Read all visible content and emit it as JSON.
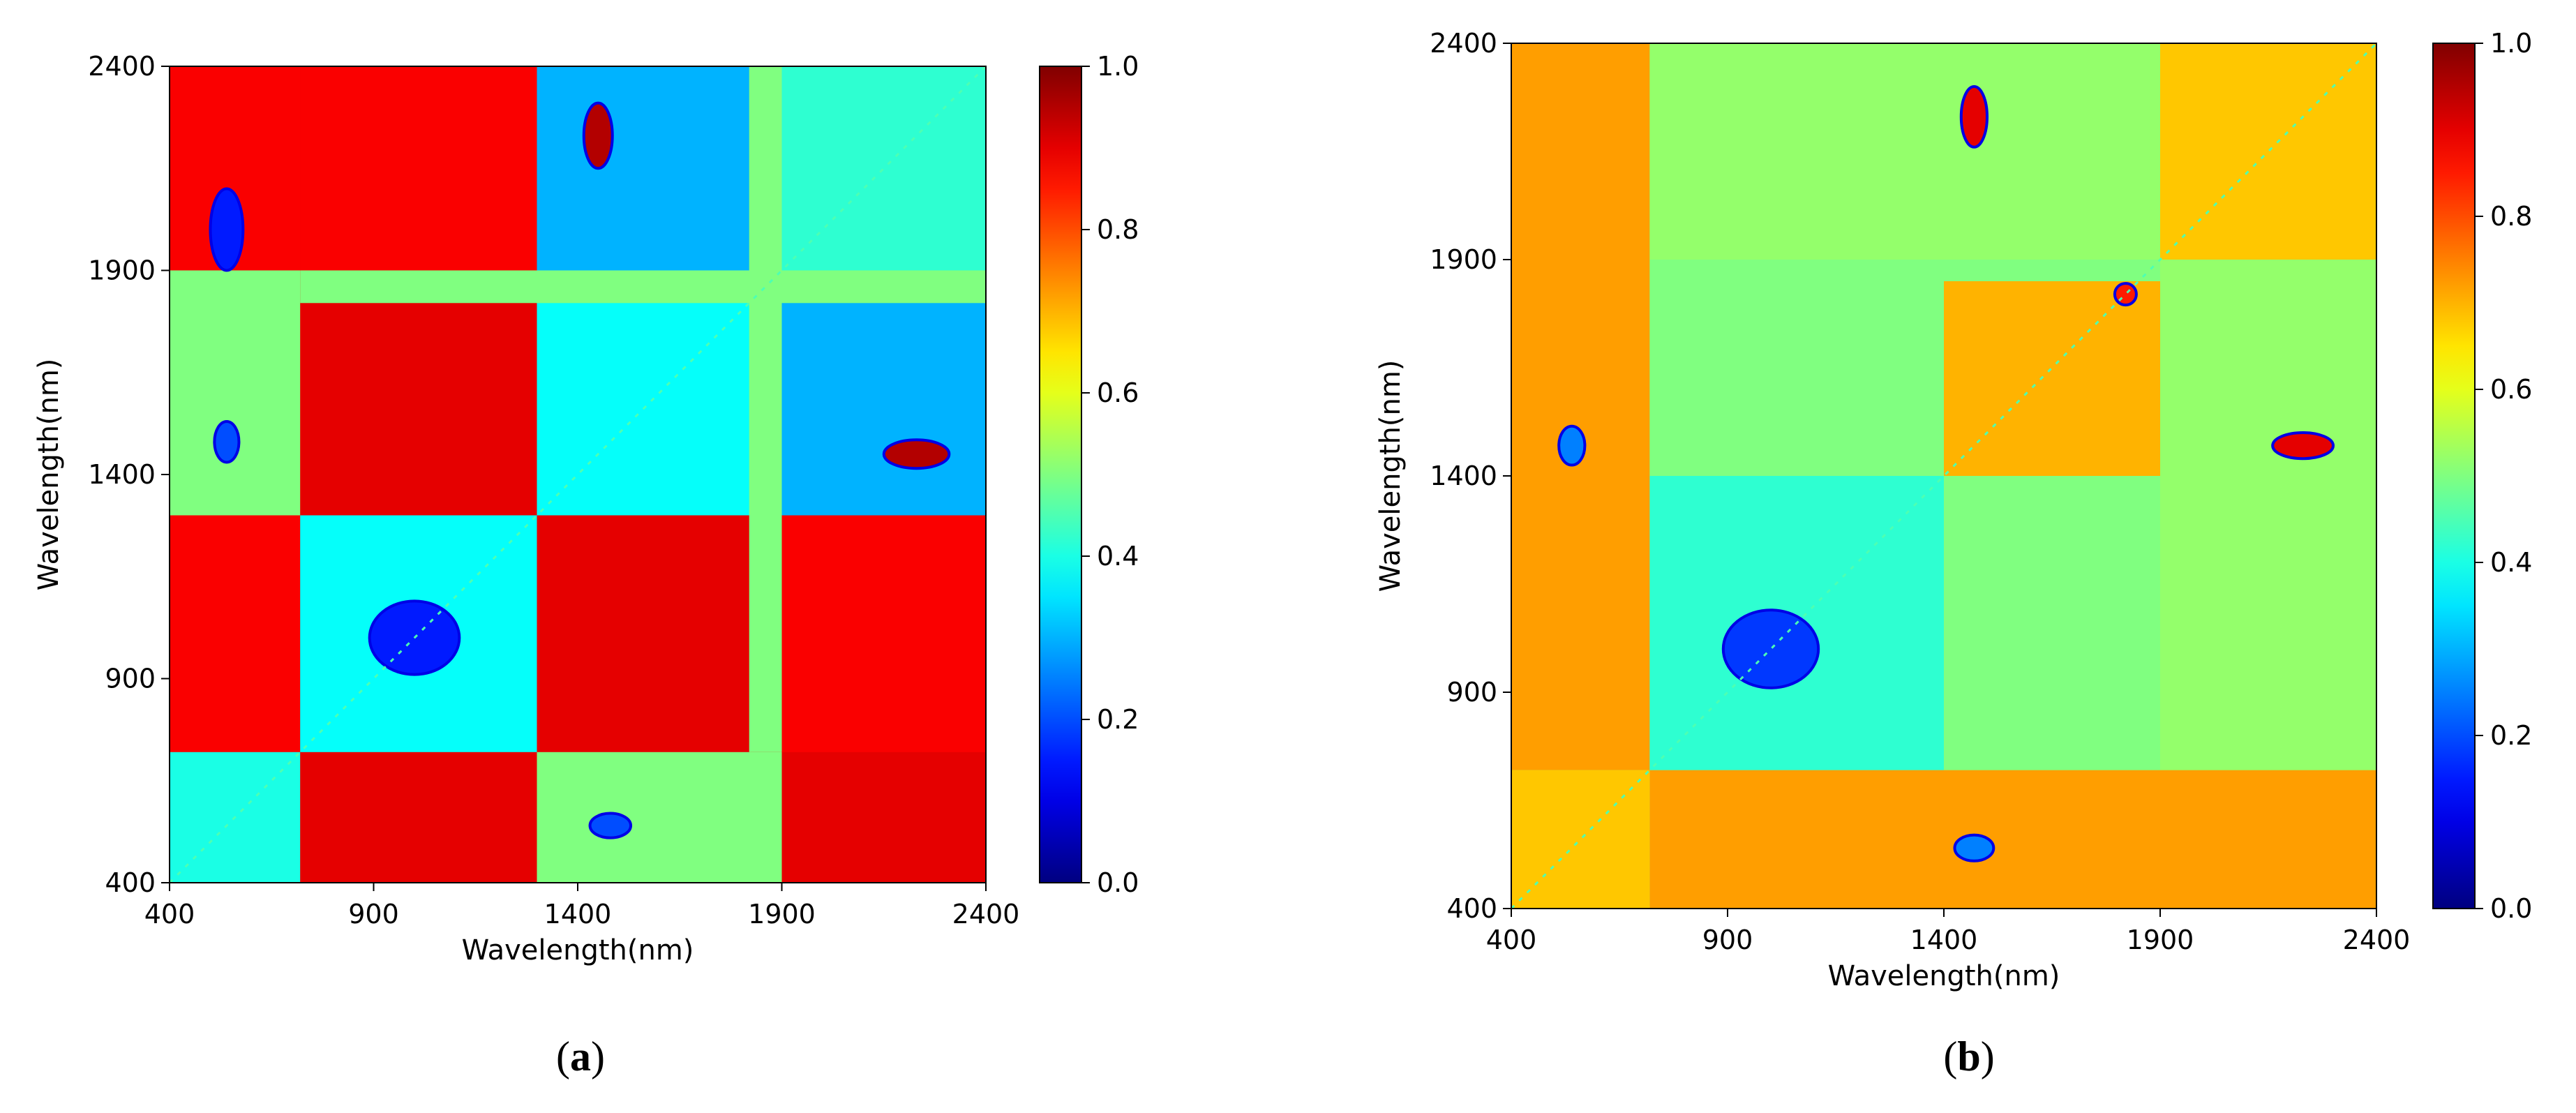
{
  "chart_data": [
    {
      "type": "heatmap",
      "panel_label": "a",
      "xlabel": "Wavelength(nm)",
      "ylabel": "Wavelength(nm)",
      "xlim": [
        400,
        2400
      ],
      "ylim": [
        400,
        2400
      ],
      "x_ticks": [
        "400",
        "900",
        "1400",
        "1900",
        "2400"
      ],
      "y_ticks": [
        "400",
        "900",
        "1400",
        "1900",
        "2400"
      ],
      "colorbar": {
        "range": [
          0.0,
          1.0
        ],
        "ticks": [
          "0.0",
          "0.2",
          "0.4",
          "0.6",
          "0.8",
          "1.0"
        ],
        "colormap": "jet"
      },
      "background_value": 0.9,
      "regions": [
        {
          "x": [
            400,
            720
          ],
          "y": [
            720,
            2400
          ],
          "v": 0.88
        },
        {
          "x": [
            720,
            2400
          ],
          "y": [
            400,
            720
          ],
          "v": 0.9
        },
        {
          "x": [
            400,
            720
          ],
          "y": [
            400,
            720
          ],
          "v": 0.4
        },
        {
          "x": [
            720,
            1300
          ],
          "y": [
            720,
            1300
          ],
          "v": 0.38
        },
        {
          "x": [
            1300,
            1900
          ],
          "y": [
            1300,
            1900
          ],
          "v": 0.38
        },
        {
          "x": [
            1900,
            2400
          ],
          "y": [
            1900,
            2400
          ],
          "v": 0.42
        },
        {
          "x": [
            1300,
            1900
          ],
          "y": [
            720,
            1300
          ],
          "v": 0.9
        },
        {
          "x": [
            720,
            1300
          ],
          "y": [
            1300,
            1900
          ],
          "v": 0.9
        },
        {
          "x": [
            1900,
            2400
          ],
          "y": [
            720,
            1900
          ],
          "v": 0.88
        },
        {
          "x": [
            720,
            1900
          ],
          "y": [
            1900,
            2400
          ],
          "v": 0.88
        },
        {
          "x": [
            1900,
            2400
          ],
          "y": [
            1300,
            1900
          ],
          "v": 0.3
        },
        {
          "x": [
            1300,
            1900
          ],
          "y": [
            1900,
            2400
          ],
          "v": 0.3
        },
        {
          "x": [
            400,
            720
          ],
          "y": [
            1300,
            1900
          ],
          "v": 0.5
        },
        {
          "x": [
            1300,
            1900
          ],
          "y": [
            400,
            720
          ],
          "v": 0.5
        },
        {
          "x": [
            1820,
            1900
          ],
          "y": [
            720,
            2400
          ],
          "v": 0.5
        },
        {
          "x": [
            720,
            2400
          ],
          "y": [
            1820,
            1900
          ],
          "v": 0.5
        }
      ],
      "spots": [
        {
          "x": 2230,
          "y": 1450,
          "rx": 80,
          "ry": 35,
          "v": 0.95
        },
        {
          "x": 1450,
          "y": 2230,
          "rx": 35,
          "ry": 80,
          "v": 0.95
        },
        {
          "x": 540,
          "y": 1480,
          "rx": 30,
          "ry": 50,
          "v": 0.2
        },
        {
          "x": 1480,
          "y": 540,
          "rx": 50,
          "ry": 30,
          "v": 0.2
        },
        {
          "x": 1000,
          "y": 1000,
          "rx": 110,
          "ry": 90,
          "v": 0.15
        },
        {
          "x": 540,
          "y": 2000,
          "rx": 40,
          "ry": 100,
          "v": 0.15
        }
      ]
    },
    {
      "type": "heatmap",
      "panel_label": "b",
      "xlabel": "Wavelength(nm)",
      "ylabel": "Wavelength(nm)",
      "xlim": [
        400,
        2400
      ],
      "ylim": [
        400,
        2400
      ],
      "x_ticks": [
        "400",
        "900",
        "1400",
        "1900",
        "2400"
      ],
      "y_ticks": [
        "400",
        "900",
        "1400",
        "1900",
        "2400"
      ],
      "colorbar": {
        "range": [
          0.0,
          1.0
        ],
        "ticks": [
          "0.0",
          "0.2",
          "0.4",
          "0.6",
          "0.8",
          "1.0"
        ],
        "colormap": "jet"
      },
      "background_value": 0.5,
      "regions": [
        {
          "x": [
            400,
            720
          ],
          "y": [
            720,
            2400
          ],
          "v": 0.72
        },
        {
          "x": [
            720,
            2400
          ],
          "y": [
            400,
            720
          ],
          "v": 0.72
        },
        {
          "x": [
            400,
            720
          ],
          "y": [
            400,
            720
          ],
          "v": 0.68
        },
        {
          "x": [
            720,
            1400
          ],
          "y": [
            720,
            1400
          ],
          "v": 0.42
        },
        {
          "x": [
            1400,
            1900
          ],
          "y": [
            720,
            1400
          ],
          "v": 0.5
        },
        {
          "x": [
            720,
            1400
          ],
          "y": [
            1400,
            1900
          ],
          "v": 0.5
        },
        {
          "x": [
            1400,
            1900
          ],
          "y": [
            1400,
            1850
          ],
          "v": 0.7
        },
        {
          "x": [
            1900,
            2400
          ],
          "y": [
            1900,
            2400
          ],
          "v": 0.68
        },
        {
          "x": [
            1900,
            2400
          ],
          "y": [
            720,
            1900
          ],
          "v": 0.52
        },
        {
          "x": [
            720,
            1900
          ],
          "y": [
            1900,
            2400
          ],
          "v": 0.52
        }
      ],
      "spots": [
        {
          "x": 2230,
          "y": 1470,
          "rx": 70,
          "ry": 30,
          "v": 0.9
        },
        {
          "x": 1470,
          "y": 2230,
          "rx": 30,
          "ry": 70,
          "v": 0.9
        },
        {
          "x": 540,
          "y": 1470,
          "rx": 30,
          "ry": 45,
          "v": 0.25
        },
        {
          "x": 1470,
          "y": 540,
          "rx": 45,
          "ry": 30,
          "v": 0.25
        },
        {
          "x": 1000,
          "y": 1000,
          "rx": 110,
          "ry": 90,
          "v": 0.18
        },
        {
          "x": 1820,
          "y": 1820,
          "rx": 25,
          "ry": 25,
          "v": 0.85
        }
      ]
    }
  ]
}
